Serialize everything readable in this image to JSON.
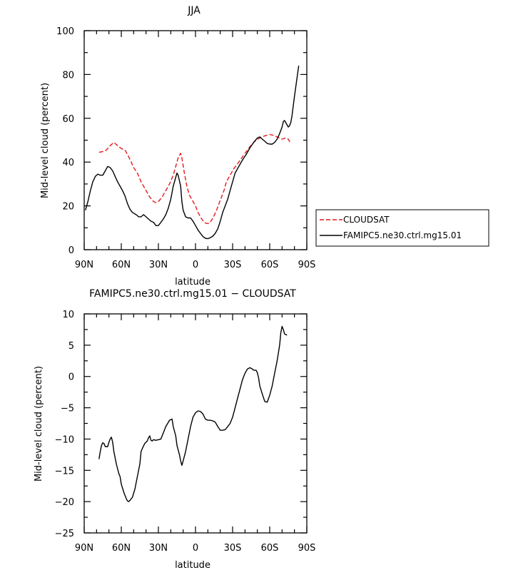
{
  "chart_data": [
    {
      "type": "line",
      "title": "JJA",
      "xlabel": "latitude",
      "ylabel": "Mid-level cloud (percent)",
      "xlim": [
        90,
        -90
      ],
      "ylim": [
        0,
        100
      ],
      "xticks": [
        {
          "value": 90,
          "label": "90N"
        },
        {
          "value": 60,
          "label": "60N"
        },
        {
          "value": 30,
          "label": "30N"
        },
        {
          "value": 0,
          "label": "0"
        },
        {
          "value": -30,
          "label": "30S"
        },
        {
          "value": -60,
          "label": "60S"
        },
        {
          "value": -90,
          "label": "90S"
        }
      ],
      "yticks": [
        {
          "value": 0,
          "label": "0"
        },
        {
          "value": 20,
          "label": "20"
        },
        {
          "value": 40,
          "label": "40"
        },
        {
          "value": 60,
          "label": "60"
        },
        {
          "value": 80,
          "label": "80"
        },
        {
          "value": 100,
          "label": "100"
        }
      ],
      "legend": {
        "position": "right",
        "show": true
      },
      "series": [
        {
          "name": "CLOUDSAT",
          "color": "#e31a1c",
          "dash": "dashed",
          "points": [
            [
              78,
              44.5
            ],
            [
              75,
              44.8
            ],
            [
              72,
              45.5
            ],
            [
              69,
              47.5
            ],
            [
              66,
              49
            ],
            [
              63,
              47.5
            ],
            [
              60,
              46.2
            ],
            [
              57,
              45.5
            ],
            [
              55,
              43.5
            ],
            [
              52,
              40
            ],
            [
              50,
              37.5
            ],
            [
              47,
              35
            ],
            [
              44,
              31
            ],
            [
              40,
              27
            ],
            [
              37,
              24
            ],
            [
              34,
              22
            ],
            [
              32,
              21.5
            ],
            [
              30,
              22
            ],
            [
              27,
              24
            ],
            [
              24,
              27
            ],
            [
              21,
              30
            ],
            [
              18,
              34
            ],
            [
              16,
              38
            ],
            [
              14,
              42
            ],
            [
              12,
              44
            ],
            [
              11,
              42
            ],
            [
              9,
              35
            ],
            [
              7,
              29
            ],
            [
              5,
              25
            ],
            [
              3,
              23
            ],
            [
              0,
              20
            ],
            [
              -2,
              17
            ],
            [
              -5,
              14
            ],
            [
              -7,
              12.5
            ],
            [
              -9,
              12
            ],
            [
              -11,
              12
            ],
            [
              -13,
              13.5
            ],
            [
              -15,
              15.5
            ],
            [
              -17,
              18
            ],
            [
              -19,
              21
            ],
            [
              -21,
              24
            ],
            [
              -23,
              27
            ],
            [
              -25,
              31
            ],
            [
              -28,
              34
            ],
            [
              -31,
              37
            ],
            [
              -35,
              40
            ],
            [
              -40,
              44
            ],
            [
              -44,
              47
            ],
            [
              -48,
              49.5
            ],
            [
              -52,
              51
            ],
            [
              -56,
              52
            ],
            [
              -60,
              52.6
            ],
            [
              -63,
              52.2
            ],
            [
              -66,
              51.5
            ],
            [
              -70,
              50.5
            ],
            [
              -73,
              51
            ],
            [
              -75,
              50.5
            ],
            [
              -77,
              48.5
            ]
          ]
        },
        {
          "name": "FAMIPC5.ne30.ctrl.mg15.01",
          "color": "#000000",
          "dash": "solid",
          "points": [
            [
              89,
              18
            ],
            [
              87,
              22
            ],
            [
              85,
              27
            ],
            [
              83,
              31
            ],
            [
              81,
              33.5
            ],
            [
              79,
              34.5
            ],
            [
              77,
              34
            ],
            [
              75,
              34
            ],
            [
              73,
              36
            ],
            [
              71,
              38
            ],
            [
              69,
              37.5
            ],
            [
              67,
              36
            ],
            [
              65,
              33.5
            ],
            [
              63,
              31
            ],
            [
              61,
              29
            ],
            [
              59,
              27
            ],
            [
              57,
              24.5
            ],
            [
              55,
              21
            ],
            [
              53,
              18.5
            ],
            [
              51,
              17
            ],
            [
              48,
              16
            ],
            [
              46,
              15
            ],
            [
              44,
              15
            ],
            [
              42,
              16
            ],
            [
              40,
              15
            ],
            [
              38,
              14
            ],
            [
              36,
              13
            ],
            [
              34,
              12.5
            ],
            [
              32,
              11
            ],
            [
              30,
              11
            ],
            [
              28,
              12.5
            ],
            [
              26,
              14
            ],
            [
              24,
              16
            ],
            [
              22,
              19
            ],
            [
              20,
              23
            ],
            [
              18,
              29
            ],
            [
              16,
              33
            ],
            [
              15,
              35
            ],
            [
              14,
              34
            ],
            [
              12,
              29
            ],
            [
              11,
              22
            ],
            [
              10,
              18
            ],
            [
              9,
              16.5
            ],
            [
              8,
              15
            ],
            [
              6,
              14.5
            ],
            [
              4,
              14.5
            ],
            [
              2,
              13
            ],
            [
              0,
              11
            ],
            [
              -2,
              9
            ],
            [
              -4,
              7.5
            ],
            [
              -6,
              6
            ],
            [
              -8,
              5.2
            ],
            [
              -10,
              5
            ],
            [
              -12,
              5.5
            ],
            [
              -14,
              6.2
            ],
            [
              -16,
              7.5
            ],
            [
              -18,
              9.5
            ],
            [
              -20,
              13
            ],
            [
              -22,
              17
            ],
            [
              -24,
              20
            ],
            [
              -26,
              23
            ],
            [
              -28,
              27
            ],
            [
              -30,
              31
            ],
            [
              -32,
              35
            ],
            [
              -35,
              38
            ],
            [
              -38,
              41
            ],
            [
              -41,
              43.5
            ],
            [
              -44,
              46.5
            ],
            [
              -47,
              49
            ],
            [
              -50,
              51
            ],
            [
              -52,
              51.5
            ],
            [
              -54,
              50.5
            ],
            [
              -56,
              49.5
            ],
            [
              -58,
              48.5
            ],
            [
              -60,
              48.2
            ],
            [
              -62,
              48.2
            ],
            [
              -64,
              49
            ],
            [
              -66,
              50.5
            ],
            [
              -68,
              53
            ],
            [
              -70,
              56
            ],
            [
              -71,
              58.5
            ],
            [
              -72,
              59
            ],
            [
              -73,
              58
            ],
            [
              -74,
              57
            ],
            [
              -75,
              56
            ],
            [
              -76,
              56.5
            ],
            [
              -77,
              58
            ],
            [
              -78,
              61
            ],
            [
              -80,
              70
            ],
            [
              -82,
              78
            ],
            [
              -83.5,
              84
            ]
          ]
        }
      ]
    },
    {
      "type": "line",
      "title": "FAMIPC5.ne30.ctrl.mg15.01 − CLOUDSAT",
      "xlabel": "latitude",
      "ylabel": "Mid-level cloud (percent)",
      "xlim": [
        90,
        -90
      ],
      "ylim": [
        -25,
        10
      ],
      "xticks": [
        {
          "value": 90,
          "label": "90N"
        },
        {
          "value": 60,
          "label": "60N"
        },
        {
          "value": 30,
          "label": "30N"
        },
        {
          "value": 0,
          "label": "0"
        },
        {
          "value": -30,
          "label": "30S"
        },
        {
          "value": -60,
          "label": "60S"
        },
        {
          "value": -90,
          "label": "90S"
        }
      ],
      "yticks": [
        {
          "value": -25,
          "label": "−25"
        },
        {
          "value": -20,
          "label": "−20"
        },
        {
          "value": -15,
          "label": "−15"
        },
        {
          "value": -10,
          "label": "−10"
        },
        {
          "value": -5,
          "label": "−5"
        },
        {
          "value": 0,
          "label": "0"
        },
        {
          "value": 5,
          "label": "5"
        },
        {
          "value": 10,
          "label": "10"
        }
      ],
      "legend": {
        "show": false
      },
      "series": [
        {
          "color": "#000000",
          "dash": "solid",
          "points": [
            [
              78,
              -13.2
            ],
            [
              77,
              -12
            ],
            [
              76,
              -11
            ],
            [
              75,
              -10.6
            ],
            [
              74,
              -10.7
            ],
            [
              73,
              -11.2
            ],
            [
              71,
              -11.2
            ],
            [
              70,
              -10.5
            ],
            [
              69,
              -10
            ],
            [
              68,
              -9.7
            ],
            [
              67,
              -10.5
            ],
            [
              66,
              -12
            ],
            [
              64,
              -14
            ],
            [
              62,
              -15.5
            ],
            [
              61,
              -16
            ],
            [
              60,
              -17.2
            ],
            [
              58,
              -18.5
            ],
            [
              56,
              -19.5
            ],
            [
              55,
              -19.9
            ],
            [
              54,
              -20
            ],
            [
              53,
              -19.8
            ],
            [
              51,
              -19.3
            ],
            [
              49,
              -18
            ],
            [
              48,
              -17
            ],
            [
              47,
              -16
            ],
            [
              45,
              -14
            ],
            [
              44,
              -12
            ],
            [
              43,
              -11.5
            ],
            [
              41,
              -10.7
            ],
            [
              39,
              -10.3
            ],
            [
              38,
              -9.8
            ],
            [
              37,
              -9.5
            ],
            [
              36,
              -10.2
            ],
            [
              35,
              -10.3
            ],
            [
              34,
              -10.1
            ],
            [
              32,
              -10.2
            ],
            [
              30,
              -10.1
            ],
            [
              28,
              -10
            ],
            [
              26,
              -9
            ],
            [
              24,
              -8
            ],
            [
              21,
              -7
            ],
            [
              19,
              -6.8
            ],
            [
              18,
              -8
            ],
            [
              16,
              -9.5
            ],
            [
              15,
              -11
            ],
            [
              13,
              -12.5
            ],
            [
              12,
              -13.5
            ],
            [
              11,
              -14.2
            ],
            [
              10,
              -13.5
            ],
            [
              8,
              -12
            ],
            [
              6,
              -10
            ],
            [
              4,
              -8
            ],
            [
              2,
              -6.5
            ],
            [
              0,
              -5.8
            ],
            [
              -2,
              -5.5
            ],
            [
              -4,
              -5.6
            ],
            [
              -6,
              -6
            ],
            [
              -8,
              -6.8
            ],
            [
              -10,
              -7
            ],
            [
              -12,
              -7
            ],
            [
              -14,
              -7.1
            ],
            [
              -16,
              -7.3
            ],
            [
              -18,
              -8
            ],
            [
              -20,
              -8.6
            ],
            [
              -22,
              -8.6
            ],
            [
              -24,
              -8.5
            ],
            [
              -26,
              -8
            ],
            [
              -28,
              -7.5
            ],
            [
              -30,
              -6.5
            ],
            [
              -32,
              -5
            ],
            [
              -34,
              -3.5
            ],
            [
              -36,
              -2
            ],
            [
              -38,
              -0.5
            ],
            [
              -40,
              0.5
            ],
            [
              -42,
              1.2
            ],
            [
              -44,
              1.4
            ],
            [
              -46,
              1.2
            ],
            [
              -47,
              1
            ],
            [
              -49,
              1
            ],
            [
              -50,
              0.6
            ],
            [
              -51,
              -0.2
            ],
            [
              -52,
              -1.5
            ],
            [
              -54,
              -2.8
            ],
            [
              -56,
              -4
            ],
            [
              -58,
              -4.1
            ],
            [
              -60,
              -3
            ],
            [
              -62,
              -1.5
            ],
            [
              -64,
              0.5
            ],
            [
              -66,
              2.5
            ],
            [
              -68,
              5
            ],
            [
              -69,
              7
            ],
            [
              -70,
              8
            ],
            [
              -71,
              7.5
            ],
            [
              -72,
              6.8
            ],
            [
              -73,
              6.7
            ],
            [
              -74,
              6.6
            ]
          ]
        }
      ]
    }
  ]
}
